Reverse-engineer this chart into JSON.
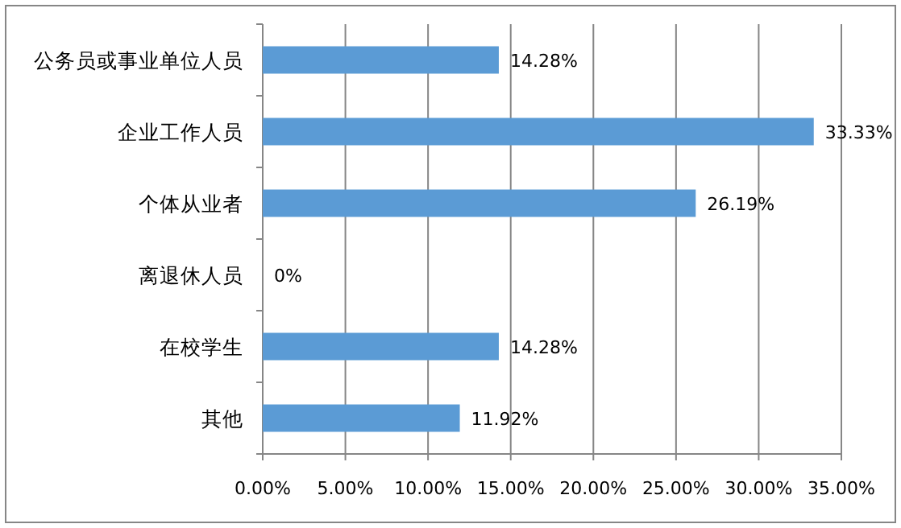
{
  "chart_data": {
    "type": "bar",
    "orientation": "horizontal",
    "categories": [
      "公务员或事业单位人员",
      "企业工作人员",
      "个体从业者",
      "离退休人员",
      "在校学生",
      "其他"
    ],
    "values": [
      14.28,
      33.33,
      26.19,
      0,
      14.28,
      11.92
    ],
    "value_labels": [
      "14.28%",
      "33.33%",
      "26.19%",
      "0%",
      "14.28%",
      "11.92%"
    ],
    "color": "#5b9bd5",
    "xlim": [
      0,
      35
    ],
    "xticks": [
      {
        "value": 0,
        "label": "0.00%"
      },
      {
        "value": 5,
        "label": "5.00%"
      },
      {
        "value": 10,
        "label": "10.00%"
      },
      {
        "value": 15,
        "label": "15.00%"
      },
      {
        "value": 20,
        "label": "20.00%"
      },
      {
        "value": 25,
        "label": "25.00%"
      },
      {
        "value": 30,
        "label": "30.00%"
      },
      {
        "value": 35,
        "label": "35.00%"
      }
    ],
    "grid": "x"
  }
}
